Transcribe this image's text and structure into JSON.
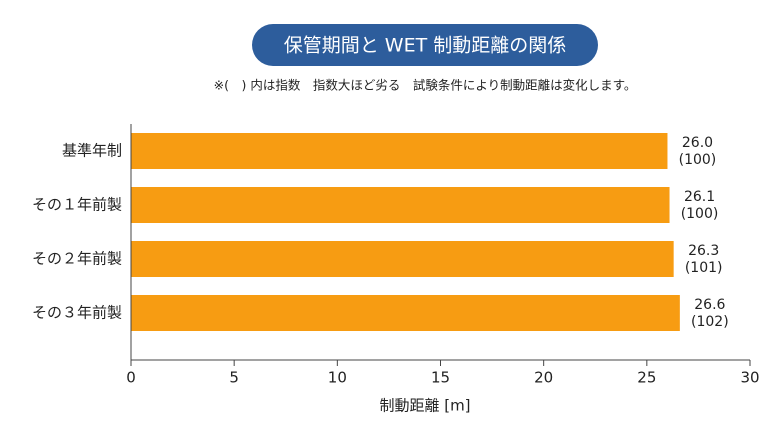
{
  "chart_data": {
    "type": "barh",
    "title": "保管期間と WET 制動距離の関係",
    "subtitle": "※(　) 内は指数　指数大ほど劣る　試験条件により制動距離は変化します。",
    "x_label": "制動距離 [m]",
    "categories": [
      "基準年制",
      "その１年前製",
      "その２年前製",
      "その３年前製"
    ],
    "values": [
      26.0,
      26.1,
      26.3,
      26.6
    ],
    "value_labels": [
      "26.0",
      "26.1",
      "26.3",
      "26.6"
    ],
    "index": [
      100,
      100,
      101,
      102
    ],
    "index_labels": [
      "(100)",
      "(100)",
      "(101)",
      "(102)"
    ],
    "color": "#f79c12",
    "xlim": [
      0,
      30
    ],
    "xticks": [
      0,
      5,
      10,
      15,
      20,
      25,
      30
    ]
  }
}
